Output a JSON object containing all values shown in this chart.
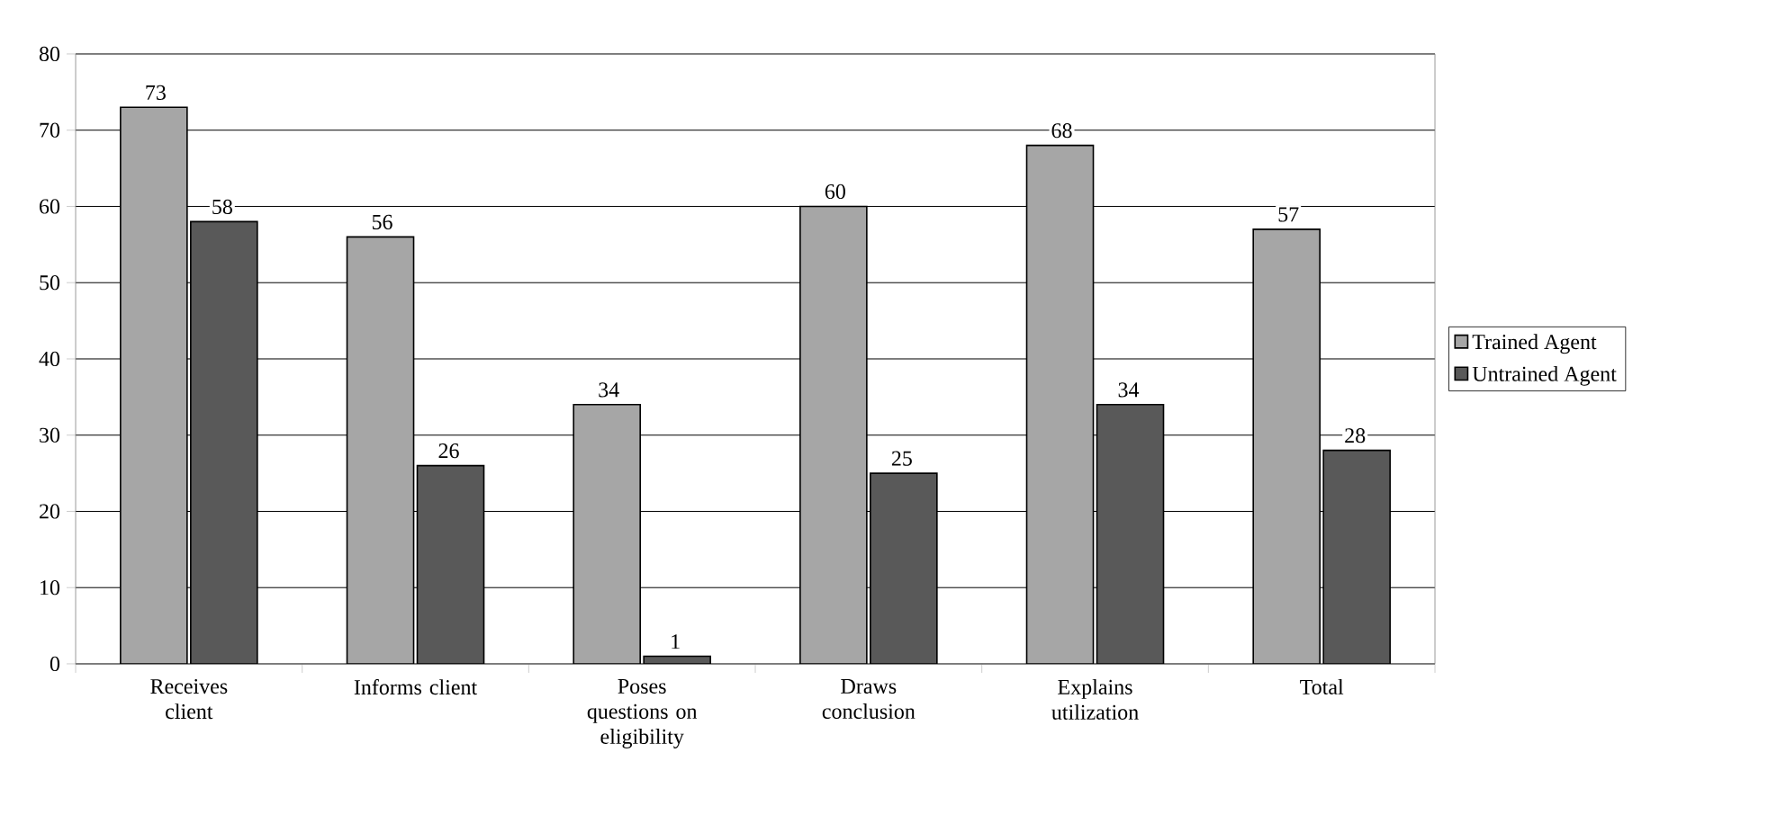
{
  "chart_data": {
    "type": "bar",
    "categories": [
      "Receives client",
      "Informs client",
      "Poses questions on eligibility",
      "Draws conclusion",
      "Explains utilization",
      "Total"
    ],
    "series": [
      {
        "name": "Trained Agent",
        "color": "#a6a6a6",
        "values": [
          73,
          56,
          34,
          60,
          68,
          57
        ]
      },
      {
        "name": "Untrained Agent",
        "color": "#595959",
        "values": [
          58,
          26,
          1,
          25,
          34,
          28
        ]
      }
    ],
    "ylim": [
      0,
      80
    ],
    "yticks": [
      0,
      10,
      20,
      30,
      40,
      50,
      60,
      70,
      80
    ],
    "grid": "y",
    "legend": "right",
    "data_labels": true
  }
}
